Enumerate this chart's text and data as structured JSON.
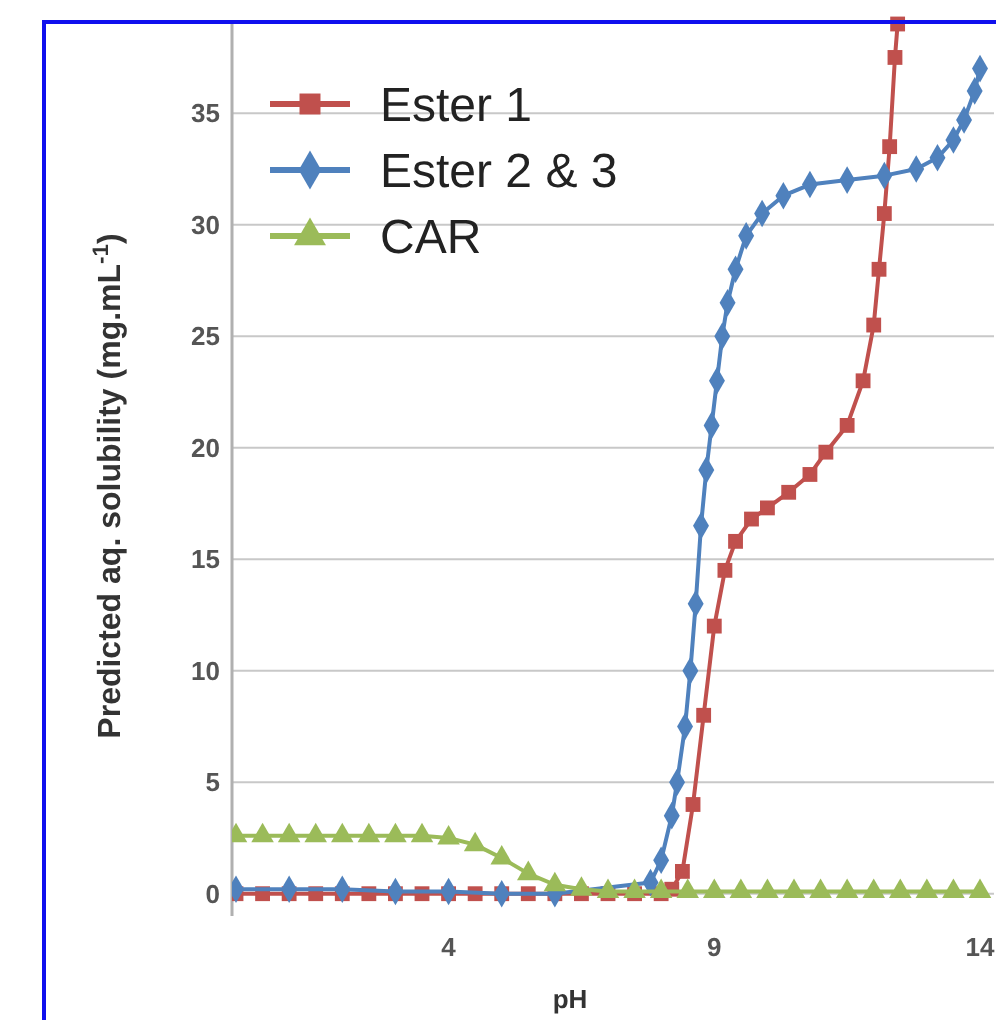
{
  "chart_data": {
    "type": "line",
    "xlabel": "pH",
    "ylabel": "Predicted aq. solubility (mg.mL$^{-1}$)",
    "xlim": [
      0,
      14
    ],
    "ylim": [
      -1,
      39
    ],
    "xticks": [
      4,
      9,
      14
    ],
    "yticks": [
      0,
      5,
      10,
      15,
      20,
      25,
      30,
      35
    ],
    "grid": "y",
    "legend": "top left",
    "series": [
      {
        "name": "Ester 1",
        "color": "#c0504d",
        "marker": "square",
        "x": [
          0,
          0.5,
          1,
          1.5,
          2,
          2.5,
          3,
          3.5,
          4,
          4.5,
          5,
          5.5,
          6,
          6.5,
          7,
          7.5,
          8,
          8.2,
          8.4,
          8.6,
          8.8,
          9.0,
          9.2,
          9.4,
          9.7,
          10,
          10.4,
          10.8,
          11.1,
          11.5,
          11.8,
          12.0,
          12.1,
          12.2,
          12.3,
          12.4,
          12.45
        ],
        "values": [
          0,
          0,
          0,
          0,
          0,
          0,
          0,
          0,
          0,
          0,
          0,
          0,
          0,
          0,
          0,
          0,
          0,
          0.2,
          1,
          4,
          8,
          12,
          14.5,
          15.8,
          16.8,
          17.3,
          18,
          18.8,
          19.8,
          21,
          23,
          25.5,
          28,
          30.5,
          33.5,
          37.5,
          39
        ]
      },
      {
        "name": "Ester 2 & 3",
        "color": "#4f81bd",
        "marker": "diamond",
        "x": [
          0,
          1,
          2,
          3,
          4,
          5,
          6,
          7,
          7.5,
          7.8,
          8.0,
          8.2,
          8.3,
          8.45,
          8.55,
          8.65,
          8.75,
          8.85,
          8.95,
          9.05,
          9.15,
          9.25,
          9.4,
          9.6,
          9.9,
          10.3,
          10.8,
          11.5,
          12.2,
          12.8,
          13.2,
          13.5,
          13.7,
          13.9,
          14
        ],
        "values": [
          0.2,
          0.2,
          0.2,
          0.1,
          0.1,
          0,
          0,
          null,
          null,
          0.5,
          1.5,
          3.5,
          5,
          7.5,
          10,
          13,
          16.5,
          19,
          21,
          23,
          25,
          26.5,
          28,
          29.5,
          30.5,
          31.3,
          31.8,
          32,
          32.2,
          32.5,
          33,
          33.8,
          34.7,
          36,
          37
        ]
      },
      {
        "name": "CAR",
        "color": "#9bbb59",
        "marker": "triangle",
        "x": [
          0,
          0.5,
          1,
          1.5,
          2,
          2.5,
          3,
          3.5,
          4,
          4.5,
          5,
          5.5,
          6,
          6.5,
          7,
          7.5,
          8,
          8.5,
          9,
          9.5,
          10,
          10.5,
          11,
          11.5,
          12,
          12.5,
          13,
          13.5,
          14
        ],
        "values": [
          2.6,
          2.6,
          2.6,
          2.6,
          2.6,
          2.6,
          2.6,
          2.6,
          2.5,
          2.2,
          1.6,
          0.9,
          0.4,
          0.2,
          0.1,
          0.1,
          0.1,
          0.1,
          0.1,
          0.1,
          0.1,
          0.1,
          0.1,
          0.1,
          0.1,
          0.1,
          0.1,
          0.1,
          0.1
        ]
      }
    ]
  }
}
